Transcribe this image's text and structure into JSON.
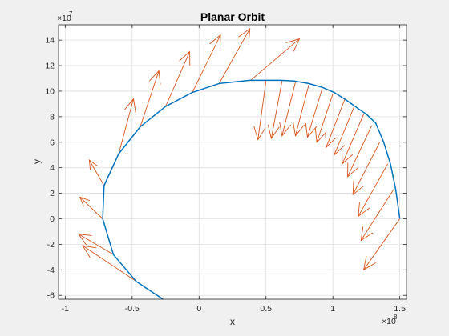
{
  "chart_data": {
    "type": "line",
    "title": "Planar Orbit",
    "xlabel": "x",
    "ylabel": "y",
    "xlim": [
      -1.05,
      1.55
    ],
    "ylim": [
      -6.3,
      15.2
    ],
    "x_exponent_label": "×10",
    "x_exponent_power": "8",
    "y_exponent_label": "×10",
    "y_exponent_power": "7",
    "x_ticks": [
      -1,
      -0.5,
      0,
      0.5,
      1,
      1.5
    ],
    "x_tick_labels": [
      "-1",
      "-0.5",
      "0",
      "0.5",
      "1",
      "1.5"
    ],
    "y_ticks": [
      -6,
      -4,
      -2,
      0,
      2,
      4,
      6,
      8,
      10,
      12,
      14
    ],
    "y_tick_labels": [
      "-6",
      "-4",
      "-2",
      "0",
      "2",
      "4",
      "6",
      "8",
      "10",
      "12",
      "14"
    ],
    "grid": true,
    "series": [
      {
        "kind": "orbit",
        "color": "#0072bd",
        "x": [
          1.5,
          1.47,
          1.43,
          1.38,
          1.32,
          1.25,
          1.18,
          1.1,
          1.01,
          0.92,
          0.82,
          0.71,
          0.61,
          0.5,
          0.38,
          0.15,
          -0.05,
          -0.25,
          -0.44,
          -0.6,
          -0.71,
          -0.72,
          -0.64,
          -0.47,
          -0.27
        ],
        "y": [
          0,
          2.3,
          4.3,
          6.0,
          7.5,
          8.2,
          8.7,
          9.3,
          9.9,
          10.3,
          10.6,
          10.8,
          10.85,
          10.85,
          10.85,
          10.6,
          9.9,
          8.8,
          7.2,
          5.1,
          2.6,
          0.0,
          -2.8,
          -4.9,
          -6.3
        ]
      },
      {
        "kind": "velocity-arrows",
        "color": "#d95319",
        "arrows": [
          {
            "x": 1.5,
            "y": 0.0,
            "u": -0.27,
            "v": -4.0
          },
          {
            "x": 1.46,
            "y": 2.4,
            "u": -0.25,
            "v": -4.1
          },
          {
            "x": 1.41,
            "y": 4.3,
            "u": -0.22,
            "v": -4.1
          },
          {
            "x": 1.35,
            "y": 6.0,
            "u": -0.2,
            "v": -4.1
          },
          {
            "x": 1.29,
            "y": 7.3,
            "u": -0.18,
            "v": -4.0
          },
          {
            "x": 1.23,
            "y": 8.2,
            "u": -0.16,
            "v": -3.9
          },
          {
            "x": 1.16,
            "y": 8.8,
            "u": -0.15,
            "v": -3.8
          },
          {
            "x": 1.09,
            "y": 9.4,
            "u": -0.14,
            "v": -3.8
          },
          {
            "x": 1.0,
            "y": 9.8,
            "u": -0.12,
            "v": -3.8
          },
          {
            "x": 0.92,
            "y": 10.2,
            "u": -0.11,
            "v": -3.8
          },
          {
            "x": 0.82,
            "y": 10.5,
            "u": -0.1,
            "v": -4.0
          },
          {
            "x": 0.72,
            "y": 10.7,
            "u": -0.1,
            "v": -4.2
          },
          {
            "x": 0.62,
            "y": 10.8,
            "u": -0.08,
            "v": -4.5
          },
          {
            "x": 0.5,
            "y": 10.8,
            "u": -0.06,
            "v": -4.6
          },
          {
            "x": 0.38,
            "y": 10.8,
            "u": 0.37,
            "v": 3.3
          },
          {
            "x": 0.15,
            "y": 10.6,
            "u": 0.23,
            "v": 4.3
          },
          {
            "x": -0.05,
            "y": 9.9,
            "u": 0.21,
            "v": 4.5
          },
          {
            "x": -0.25,
            "y": 8.8,
            "u": 0.18,
            "v": 4.3
          },
          {
            "x": -0.44,
            "y": 7.2,
            "u": 0.14,
            "v": 4.4
          },
          {
            "x": -0.6,
            "y": 5.1,
            "u": 0.11,
            "v": 4.3
          },
          {
            "x": -0.71,
            "y": 2.6,
            "u": -0.11,
            "v": 2.0
          },
          {
            "x": -0.72,
            "y": 0.0,
            "u": -0.17,
            "v": 1.7
          },
          {
            "x": -0.64,
            "y": -2.8,
            "u": -0.26,
            "v": 1.6
          },
          {
            "x": -0.47,
            "y": -4.9,
            "u": -0.4,
            "v": 2.8
          }
        ]
      }
    ]
  }
}
